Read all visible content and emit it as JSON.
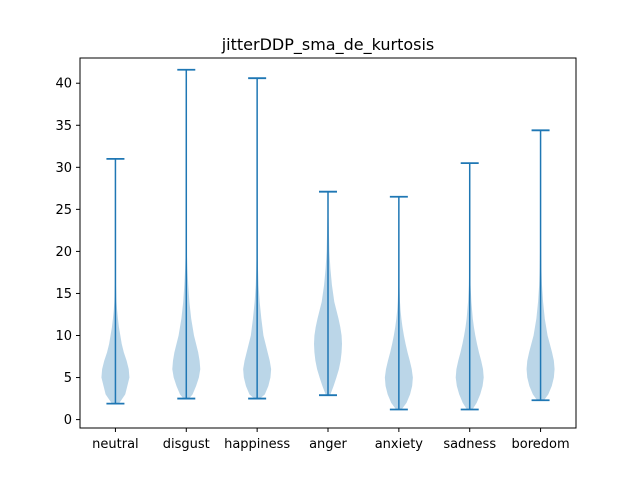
{
  "chart_data": {
    "type": "violin",
    "title": "jitterDDP_sma_de_kurtosis",
    "xlabel": "",
    "ylabel": "",
    "categories": [
      "neutral",
      "disgust",
      "happiness",
      "anger",
      "anxiety",
      "sadness",
      "boredom"
    ],
    "ylim": [
      -1.0,
      43.0
    ],
    "yticks": [
      0,
      5,
      10,
      15,
      20,
      25,
      30,
      35,
      40
    ],
    "grid": false,
    "colors": {
      "body": "#1f77b4",
      "body_opacity": 0.3,
      "lines": "#1f77b4",
      "axes": "#000000"
    },
    "violins": [
      {
        "category": "neutral",
        "min": 1.9,
        "max": 31.0,
        "density": [
          [
            1.9,
            0.25
          ],
          [
            3,
            0.7
          ],
          [
            4,
            0.85
          ],
          [
            5,
            1.0
          ],
          [
            6,
            0.95
          ],
          [
            7,
            0.8
          ],
          [
            8,
            0.6
          ],
          [
            9,
            0.45
          ],
          [
            10,
            0.35
          ],
          [
            11,
            0.25
          ],
          [
            12,
            0.18
          ],
          [
            13,
            0.12
          ],
          [
            14,
            0.08
          ],
          [
            16,
            0.04
          ],
          [
            18,
            0.02
          ],
          [
            22,
            0.01
          ],
          [
            31,
            0.005
          ]
        ]
      },
      {
        "category": "disgust",
        "min": 2.5,
        "max": 41.6,
        "density": [
          [
            2.5,
            0.2
          ],
          [
            3,
            0.45
          ],
          [
            4,
            0.7
          ],
          [
            5,
            0.9
          ],
          [
            6,
            1.0
          ],
          [
            7,
            0.95
          ],
          [
            8,
            0.85
          ],
          [
            9,
            0.7
          ],
          [
            10,
            0.55
          ],
          [
            12,
            0.35
          ],
          [
            14,
            0.22
          ],
          [
            16,
            0.14
          ],
          [
            18,
            0.08
          ],
          [
            20,
            0.04
          ],
          [
            25,
            0.015
          ],
          [
            41.6,
            0.005
          ]
        ]
      },
      {
        "category": "happiness",
        "min": 2.5,
        "max": 40.6,
        "density": [
          [
            2.5,
            0.2
          ],
          [
            3,
            0.55
          ],
          [
            4,
            0.8
          ],
          [
            5,
            0.95
          ],
          [
            6,
            1.0
          ],
          [
            7,
            0.9
          ],
          [
            8,
            0.75
          ],
          [
            9,
            0.6
          ],
          [
            10,
            0.45
          ],
          [
            12,
            0.3
          ],
          [
            14,
            0.18
          ],
          [
            16,
            0.1
          ],
          [
            18,
            0.06
          ],
          [
            20,
            0.03
          ],
          [
            25,
            0.01
          ],
          [
            40.6,
            0.005
          ]
        ]
      },
      {
        "category": "anger",
        "min": 2.9,
        "max": 27.1,
        "density": [
          [
            2.9,
            0.15
          ],
          [
            4,
            0.4
          ],
          [
            5,
            0.6
          ],
          [
            6,
            0.78
          ],
          [
            7,
            0.9
          ],
          [
            8,
            0.97
          ],
          [
            9,
            1.0
          ],
          [
            10,
            0.97
          ],
          [
            11,
            0.88
          ],
          [
            12,
            0.75
          ],
          [
            13,
            0.6
          ],
          [
            14,
            0.45
          ],
          [
            16,
            0.28
          ],
          [
            18,
            0.17
          ],
          [
            20,
            0.1
          ],
          [
            22,
            0.07
          ],
          [
            24,
            0.04
          ],
          [
            26,
            0.02
          ],
          [
            27.1,
            0.01
          ]
        ]
      },
      {
        "category": "anxiety",
        "min": 1.2,
        "max": 26.5,
        "density": [
          [
            1.2,
            0.2
          ],
          [
            2,
            0.55
          ],
          [
            3,
            0.8
          ],
          [
            4,
            0.95
          ],
          [
            5,
            1.0
          ],
          [
            6,
            0.92
          ],
          [
            7,
            0.78
          ],
          [
            8,
            0.62
          ],
          [
            9,
            0.48
          ],
          [
            10,
            0.36
          ],
          [
            11,
            0.26
          ],
          [
            12,
            0.18
          ],
          [
            13,
            0.12
          ],
          [
            14,
            0.08
          ],
          [
            16,
            0.04
          ],
          [
            20,
            0.015
          ],
          [
            26.5,
            0.005
          ]
        ]
      },
      {
        "category": "sadness",
        "min": 1.2,
        "max": 30.5,
        "density": [
          [
            1.2,
            0.2
          ],
          [
            2,
            0.5
          ],
          [
            3,
            0.75
          ],
          [
            4,
            0.92
          ],
          [
            5,
            1.0
          ],
          [
            6,
            0.95
          ],
          [
            7,
            0.82
          ],
          [
            8,
            0.66
          ],
          [
            9,
            0.52
          ],
          [
            10,
            0.4
          ],
          [
            11,
            0.3
          ],
          [
            12,
            0.22
          ],
          [
            14,
            0.12
          ],
          [
            16,
            0.06
          ],
          [
            20,
            0.02
          ],
          [
            30.5,
            0.005
          ]
        ]
      },
      {
        "category": "boredom",
        "min": 2.3,
        "max": 34.4,
        "density": [
          [
            2.3,
            0.25
          ],
          [
            3,
            0.55
          ],
          [
            4,
            0.8
          ],
          [
            5,
            0.95
          ],
          [
            6,
            1.0
          ],
          [
            7,
            0.95
          ],
          [
            8,
            0.82
          ],
          [
            9,
            0.66
          ],
          [
            10,
            0.5
          ],
          [
            12,
            0.3
          ],
          [
            14,
            0.18
          ],
          [
            16,
            0.1
          ],
          [
            18,
            0.06
          ],
          [
            20,
            0.04
          ],
          [
            22,
            0.025
          ],
          [
            26,
            0.012
          ],
          [
            34.4,
            0.005
          ]
        ]
      }
    ]
  }
}
